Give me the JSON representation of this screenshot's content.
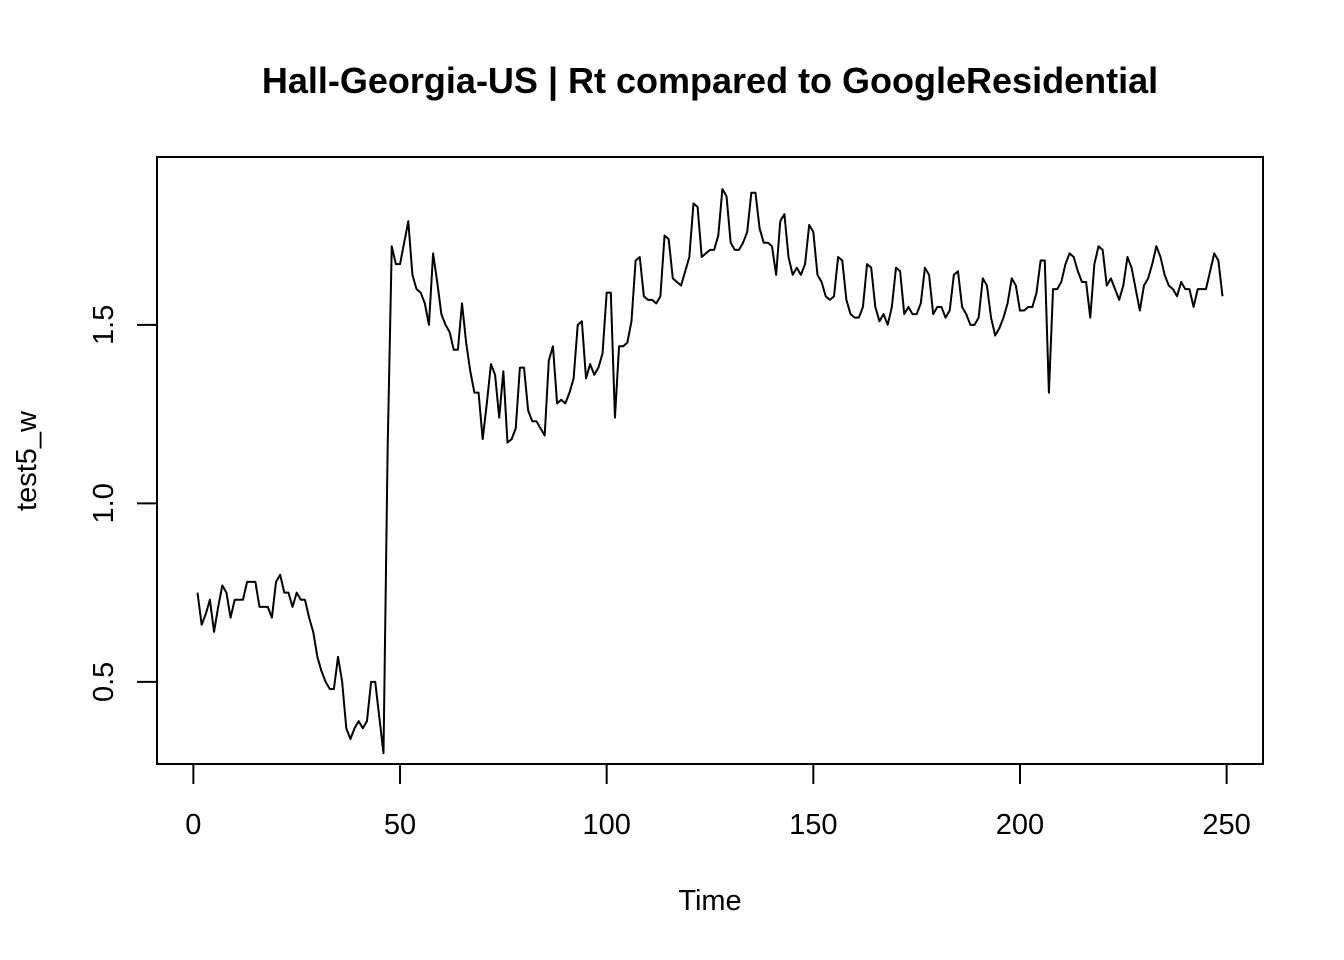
{
  "chart_data": {
    "type": "line",
    "title": "Hall-Georgia-US | Rt compared to GoogleResidential",
    "xlabel": "Time",
    "ylabel": "test5_w",
    "xlim": [
      -8.8,
      258.8
    ],
    "ylim": [
      0.27,
      1.97
    ],
    "x_ticks": [
      0,
      50,
      100,
      150,
      200,
      250
    ],
    "x_tick_labels": [
      "0",
      "50",
      "100",
      "150",
      "200",
      "250"
    ],
    "y_ticks": [
      0.5,
      1.0,
      1.5
    ],
    "y_tick_labels": [
      "0.5",
      "1.0",
      "1.5"
    ],
    "grid": false,
    "legend": "none",
    "line_color": "#000000",
    "series": [
      {
        "x_start": 1,
        "values": [
          0.75,
          0.66,
          0.69,
          0.73,
          0.64,
          0.71,
          0.77,
          0.75,
          0.68,
          0.73,
          0.73,
          0.73,
          0.78,
          0.78,
          0.78,
          0.71,
          0.71,
          0.71,
          0.68,
          0.78,
          0.8,
          0.75,
          0.75,
          0.71,
          0.75,
          0.73,
          0.73,
          0.68,
          0.64,
          0.57,
          0.53,
          0.5,
          0.48,
          0.48,
          0.57,
          0.5,
          0.37,
          0.34,
          0.37,
          0.39,
          0.37,
          0.39,
          0.5,
          0.5,
          0.4,
          0.3,
          1.15,
          1.72,
          1.67,
          1.67,
          1.73,
          1.79,
          1.64,
          1.6,
          1.59,
          1.56,
          1.5,
          1.7,
          1.62,
          1.53,
          1.5,
          1.48,
          1.43,
          1.43,
          1.56,
          1.45,
          1.37,
          1.31,
          1.31,
          1.18,
          1.28,
          1.39,
          1.36,
          1.24,
          1.37,
          1.17,
          1.18,
          1.21,
          1.38,
          1.38,
          1.26,
          1.23,
          1.23,
          1.21,
          1.19,
          1.4,
          1.44,
          1.28,
          1.29,
          1.28,
          1.31,
          1.35,
          1.5,
          1.51,
          1.35,
          1.39,
          1.36,
          1.38,
          1.42,
          1.59,
          1.59,
          1.24,
          1.44,
          1.44,
          1.45,
          1.51,
          1.68,
          1.69,
          1.58,
          1.57,
          1.57,
          1.56,
          1.58,
          1.75,
          1.74,
          1.63,
          1.62,
          1.61,
          1.65,
          1.69,
          1.84,
          1.83,
          1.69,
          1.7,
          1.71,
          1.71,
          1.75,
          1.88,
          1.86,
          1.73,
          1.71,
          1.71,
          1.73,
          1.76,
          1.87,
          1.87,
          1.77,
          1.73,
          1.73,
          1.72,
          1.64,
          1.79,
          1.81,
          1.69,
          1.64,
          1.66,
          1.64,
          1.67,
          1.78,
          1.76,
          1.64,
          1.62,
          1.58,
          1.57,
          1.58,
          1.69,
          1.68,
          1.57,
          1.53,
          1.52,
          1.52,
          1.55,
          1.67,
          1.66,
          1.55,
          1.51,
          1.53,
          1.5,
          1.55,
          1.66,
          1.65,
          1.53,
          1.55,
          1.53,
          1.53,
          1.56,
          1.66,
          1.64,
          1.53,
          1.55,
          1.55,
          1.52,
          1.54,
          1.64,
          1.65,
          1.55,
          1.53,
          1.5,
          1.5,
          1.52,
          1.63,
          1.61,
          1.52,
          1.47,
          1.49,
          1.52,
          1.56,
          1.63,
          1.61,
          1.54,
          1.54,
          1.55,
          1.55,
          1.59,
          1.68,
          1.68,
          1.31,
          1.6,
          1.6,
          1.62,
          1.67,
          1.7,
          1.69,
          1.65,
          1.62,
          1.62,
          1.52,
          1.67,
          1.72,
          1.71,
          1.61,
          1.63,
          1.6,
          1.57,
          1.61,
          1.69,
          1.66,
          1.6,
          1.54,
          1.61,
          1.63,
          1.67,
          1.72,
          1.69,
          1.64,
          1.61,
          1.6,
          1.58,
          1.62,
          1.6,
          1.6,
          1.55,
          1.6,
          1.6,
          1.6,
          1.65,
          1.7,
          1.68,
          1.58
        ]
      }
    ]
  }
}
